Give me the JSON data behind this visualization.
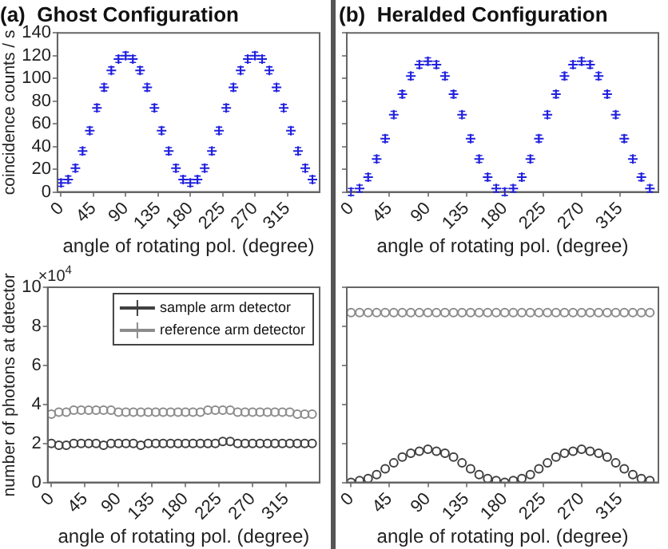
{
  "chart_data": [
    {
      "type": "scatter",
      "title": "(a)  Ghost Configuration",
      "xlabel": "angle of rotating pol. (degree)",
      "ylabel": "coincidence counts / s",
      "marker": "cross",
      "grid": false,
      "legend": false,
      "x": [
        0,
        10,
        20,
        30,
        40,
        50,
        60,
        70,
        80,
        90,
        100,
        110,
        120,
        130,
        140,
        150,
        160,
        170,
        180,
        190,
        200,
        210,
        220,
        230,
        240,
        250,
        260,
        270,
        280,
        290,
        300,
        310,
        320,
        330,
        340,
        350
      ],
      "xlim": [
        -5,
        360
      ],
      "xticks": [
        0,
        45,
        90,
        135,
        180,
        225,
        270,
        315
      ],
      "ylim": [
        0,
        140
      ],
      "yticks": [
        0,
        20,
        40,
        60,
        80,
        100,
        120,
        140
      ],
      "series": [
        {
          "color": "#2020e0",
          "values": [
            8,
            11,
            21,
            36,
            54,
            74,
            92,
            107,
            117,
            120,
            117,
            107,
            92,
            74,
            54,
            36,
            21,
            11,
            8,
            11,
            21,
            36,
            54,
            74,
            92,
            107,
            117,
            120,
            117,
            107,
            92,
            74,
            54,
            36,
            21,
            11
          ],
          "errors": [
            3,
            3,
            3,
            3,
            3,
            3,
            3,
            3,
            3,
            3,
            3,
            3,
            3,
            3,
            3,
            3,
            3,
            3,
            3,
            3,
            3,
            3,
            3,
            3,
            3,
            3,
            3,
            3,
            3,
            3,
            3,
            3,
            3,
            3,
            3,
            3
          ]
        }
      ]
    },
    {
      "type": "scatter",
      "title": "(b)  Heralded Configuration",
      "xlabel": "angle of rotating pol. (degree)",
      "marker": "cross",
      "grid": false,
      "legend": false,
      "tick_labels": "x",
      "x": [
        0,
        10,
        20,
        30,
        40,
        50,
        60,
        70,
        80,
        90,
        100,
        110,
        120,
        130,
        140,
        150,
        160,
        170,
        180,
        190,
        200,
        210,
        220,
        230,
        240,
        250,
        260,
        270,
        280,
        290,
        300,
        310,
        320,
        330,
        340,
        350
      ],
      "xlim": [
        -5,
        360
      ],
      "xticks": [
        0,
        45,
        90,
        135,
        180,
        225,
        270,
        315
      ],
      "ylim": [
        0,
        140
      ],
      "yticks": [
        0,
        20,
        40,
        60,
        80,
        100,
        120,
        140
      ],
      "series": [
        {
          "color": "#2020e0",
          "values": [
            0,
            3,
            13,
            29,
            47,
            68,
            86,
            102,
            112,
            115,
            112,
            102,
            86,
            68,
            47,
            29,
            13,
            3,
            0,
            3,
            13,
            29,
            47,
            68,
            86,
            102,
            112,
            115,
            112,
            102,
            86,
            68,
            47,
            29,
            13,
            3
          ],
          "errors": [
            3,
            3,
            3,
            3,
            3,
            3,
            3,
            3,
            3,
            3,
            3,
            3,
            3,
            3,
            3,
            3,
            3,
            3,
            3,
            3,
            3,
            3,
            3,
            3,
            3,
            3,
            3,
            3,
            3,
            3,
            3,
            3,
            3,
            3,
            3,
            3
          ]
        }
      ]
    },
    {
      "type": "scatter",
      "xlabel": "angle of rotating pol. (degree)",
      "ylabel": "number of photons at detector",
      "marker": "circle",
      "grid": false,
      "legend": "top right",
      "annotations": [
        "×10$^{4}$"
      ],
      "x": [
        0,
        10,
        20,
        30,
        40,
        50,
        60,
        70,
        80,
        90,
        100,
        110,
        120,
        130,
        140,
        150,
        160,
        170,
        180,
        190,
        200,
        210,
        220,
        230,
        240,
        250,
        260,
        270,
        280,
        290,
        300,
        310,
        320,
        330,
        340,
        350
      ],
      "xlim": [
        -5,
        360
      ],
      "xticks": [
        0,
        45,
        90,
        135,
        180,
        225,
        270,
        315
      ],
      "ylim": [
        0,
        10
      ],
      "yticks": [
        0,
        2,
        4,
        6,
        8,
        10
      ],
      "series": [
        {
          "name": "sample arm detector",
          "color": "#404040",
          "values": [
            2.0,
            1.9,
            1.9,
            2.0,
            2.0,
            2.0,
            2.0,
            1.9,
            2.0,
            2.0,
            2.0,
            2.0,
            1.9,
            2.0,
            2.0,
            2.0,
            2.0,
            2.0,
            2.0,
            2.0,
            2.0,
            2.0,
            2.0,
            2.1,
            2.1,
            2.0,
            2.0,
            2.0,
            2.0,
            2.0,
            2.0,
            2.0,
            2.0,
            2.0,
            2.0,
            2.0
          ]
        },
        {
          "name": "reference arm detector",
          "color": "#8c8c8c",
          "values": [
            3.5,
            3.6,
            3.6,
            3.7,
            3.7,
            3.7,
            3.7,
            3.7,
            3.7,
            3.6,
            3.6,
            3.6,
            3.6,
            3.6,
            3.6,
            3.6,
            3.6,
            3.6,
            3.6,
            3.6,
            3.6,
            3.7,
            3.7,
            3.7,
            3.7,
            3.6,
            3.6,
            3.6,
            3.6,
            3.6,
            3.6,
            3.6,
            3.6,
            3.5,
            3.5,
            3.5
          ]
        }
      ]
    },
    {
      "type": "scatter",
      "xlabel": "angle of rotating pol. (degree)",
      "marker": "circle",
      "grid": false,
      "legend": false,
      "tick_labels": "x",
      "x": [
        0,
        10,
        20,
        30,
        40,
        50,
        60,
        70,
        80,
        90,
        100,
        110,
        120,
        130,
        140,
        150,
        160,
        170,
        180,
        190,
        200,
        210,
        220,
        230,
        240,
        250,
        260,
        270,
        280,
        290,
        300,
        310,
        320,
        330,
        340,
        350
      ],
      "xlim": [
        -5,
        360
      ],
      "xticks": [
        0,
        45,
        90,
        135,
        180,
        225,
        270,
        315
      ],
      "ylim": [
        0,
        10
      ],
      "yticks": [
        0,
        2,
        4,
        6,
        8,
        10
      ],
      "series": [
        {
          "color": "#404040",
          "values": [
            0,
            0.1,
            0.2,
            0.4,
            0.7,
            1.0,
            1.3,
            1.5,
            1.6,
            1.7,
            1.6,
            1.5,
            1.3,
            1.0,
            0.7,
            0.4,
            0.2,
            0.1,
            0,
            0.1,
            0.2,
            0.4,
            0.7,
            1.0,
            1.3,
            1.5,
            1.6,
            1.7,
            1.6,
            1.5,
            1.3,
            1.0,
            0.7,
            0.4,
            0.2,
            0.1
          ]
        },
        {
          "color": "#8c8c8c",
          "values": [
            8.7,
            8.7,
            8.7,
            8.7,
            8.7,
            8.7,
            8.7,
            8.7,
            8.7,
            8.7,
            8.7,
            8.7,
            8.7,
            8.7,
            8.7,
            8.7,
            8.7,
            8.7,
            8.7,
            8.7,
            8.7,
            8.7,
            8.7,
            8.7,
            8.7,
            8.7,
            8.7,
            8.7,
            8.7,
            8.7,
            8.7,
            8.7,
            8.7,
            8.7,
            8.7,
            8.7
          ]
        }
      ]
    }
  ]
}
